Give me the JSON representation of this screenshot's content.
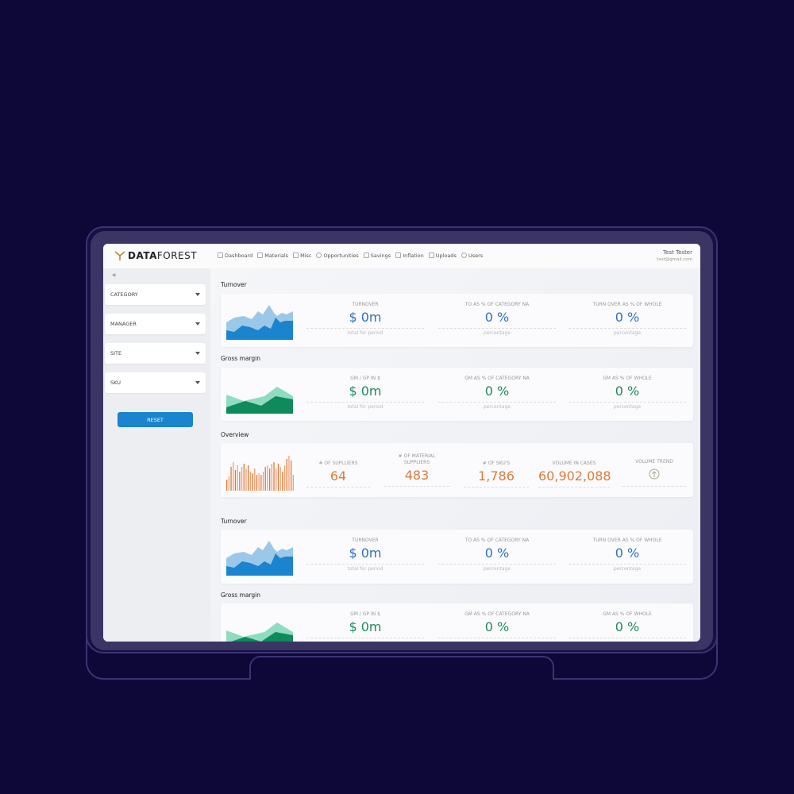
{
  "header": {
    "logo": {
      "bold": "DATA",
      "light": "FOREST"
    },
    "nav": [
      {
        "label": "Dashboard",
        "icon": "dashboard-icon"
      },
      {
        "label": "Materials",
        "icon": "mail-icon"
      },
      {
        "label": "Misc",
        "icon": "list-icon"
      },
      {
        "label": "Opportunities",
        "icon": "user-icon"
      },
      {
        "label": "Savings",
        "icon": "table-icon"
      },
      {
        "label": "Inflation",
        "icon": "table-icon"
      },
      {
        "label": "Uploads",
        "icon": "table-icon"
      },
      {
        "label": "Users",
        "icon": "user-icon"
      }
    ],
    "user": {
      "name": "Test Tester",
      "email": "test@gmail.com"
    }
  },
  "sidebar": {
    "collapse": "«",
    "filters": [
      "CATEGORY",
      "MANAGER",
      "SITE",
      "SKU"
    ],
    "reset": "RESET"
  },
  "sections": {
    "turnover": {
      "title": "Turnover",
      "kpis": [
        {
          "label": "TURNOVER",
          "value": "$ 0m",
          "sub": "total for period"
        },
        {
          "label": "TO AS % OF CATEGORY NA",
          "value": "0 %",
          "sub": "percentage"
        },
        {
          "label": "TURN OVER AS % OF WHOLE",
          "value": "0 %",
          "sub": "percentage"
        }
      ]
    },
    "gross": {
      "title": "Gross margin",
      "kpis": [
        {
          "label": "GM / GP IN $",
          "value": "$ 0m",
          "sub": "total for period"
        },
        {
          "label": "GM AS % OF CATEGORY NA",
          "value": "0 %",
          "sub": "percentage"
        },
        {
          "label": "GM AS % OF WHOLE",
          "value": "0 %",
          "sub": "percentage"
        }
      ]
    },
    "overview": {
      "title": "Overview",
      "kpis": [
        {
          "label": "# OF SUPLLIERS",
          "value": "64"
        },
        {
          "label": "# OF MATERIAL SUPPLIERS",
          "value": "483"
        },
        {
          "label": "# OF SKU'S",
          "value": "1,786"
        },
        {
          "label": "VOLUME IN CASES",
          "value": "60,902,088"
        },
        {
          "label": "VOLUME TREND",
          "icon": "arrow-up-circle-icon"
        }
      ]
    }
  },
  "colors": {
    "accent": "#1a84cf",
    "blue": "#2f6fc0",
    "green": "#1f8a5c",
    "orange": "#e07a3a",
    "background": "#0e0838"
  }
}
